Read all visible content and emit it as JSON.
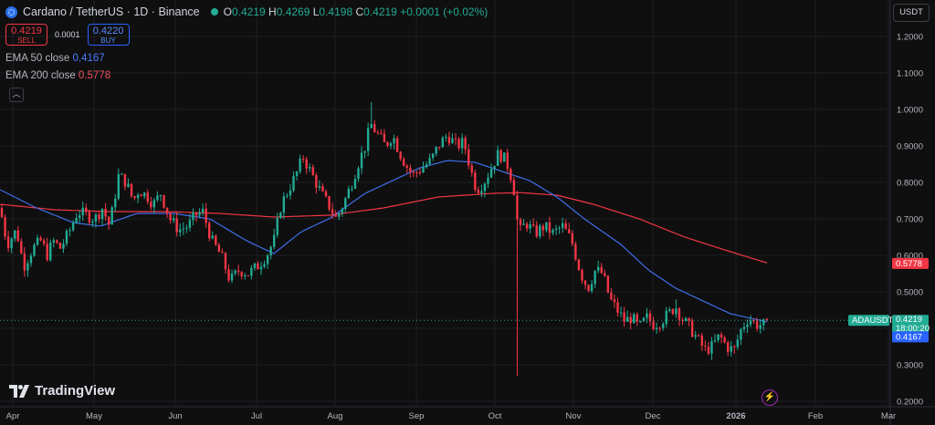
{
  "header": {
    "symbol": "Cardano / TetherUS · 1D · Binance",
    "o_label": "O",
    "o": "0.4219",
    "h_label": "H",
    "h": "0.4269",
    "l_label": "L",
    "l": "0.4198",
    "c_label": "C",
    "c": "0.4219",
    "change": "+0.0001 (+0.02%)",
    "symbol_icon": "cardano-icon",
    "market_status_color": "#22ab94"
  },
  "trade": {
    "sell_price": "0.4219",
    "sell_label": "SELL",
    "spread": "0.0001",
    "buy_price": "0.4220",
    "buy_label": "BUY"
  },
  "indicators": {
    "ema50_label": "EMA 50 close",
    "ema50_value": "0.4167",
    "ema50_color": "#4c7bff",
    "ema200_label": "EMA 200 close",
    "ema200_value": "0.5778",
    "ema200_color": "#f0525c",
    "collapse_icon": "chevron-up-icon"
  },
  "toolbar": {
    "currency": "USDT"
  },
  "branding": {
    "logo_text": "TradingView",
    "logo_icon": "tradingview-logo-icon",
    "bolt_icon": "lightning-icon"
  },
  "chart_data": {
    "type": "candlestick",
    "y_ticks": [
      "1.2000",
      "1.1000",
      "1.0000",
      "0.9000",
      "0.8000",
      "0.7000",
      "0.6000",
      "0.5000",
      "0.4000",
      "0.3000",
      "0.2000"
    ],
    "ylim": [
      0.2,
      1.25
    ],
    "x_ticks": [
      "Apr",
      "May",
      "Jun",
      "Jul",
      "Aug",
      "Sep",
      "Oct",
      "Nov",
      "Dec",
      "2026",
      "Feb",
      "Mar"
    ],
    "price_tags": [
      {
        "label": "0.5778",
        "value": 0.5778,
        "color": "#f23645"
      },
      {
        "label": "ADAUSDT",
        "value": 0.4219,
        "color": "#22ab94"
      },
      {
        "label": "0.4219",
        "value": 0.4219,
        "color": "#22ab94"
      },
      {
        "label": "18:00:20",
        "value": 0.4219,
        "color": "#22ab94"
      },
      {
        "label": "0.4167",
        "value": 0.4167,
        "color": "#2962ff"
      }
    ],
    "up_color": "#22ab94",
    "down_color": "#f23645",
    "close_path": [
      [
        0,
        0.73
      ],
      [
        8,
        0.63
      ],
      [
        18,
        0.67
      ],
      [
        26,
        0.57
      ],
      [
        36,
        0.62
      ],
      [
        45,
        0.64
      ],
      [
        52,
        0.6
      ],
      [
        58,
        0.64
      ],
      [
        66,
        0.62
      ],
      [
        75,
        0.66
      ],
      [
        85,
        0.72
      ],
      [
        95,
        0.71
      ],
      [
        104,
        0.7
      ],
      [
        112,
        0.73
      ],
      [
        120,
        0.68
      ],
      [
        130,
        0.82
      ],
      [
        138,
        0.8
      ],
      [
        146,
        0.75
      ],
      [
        152,
        0.78
      ],
      [
        162,
        0.76
      ],
      [
        168,
        0.74
      ],
      [
        176,
        0.77
      ],
      [
        186,
        0.7
      ],
      [
        196,
        0.67
      ],
      [
        206,
        0.68
      ],
      [
        214,
        0.71
      ],
      [
        222,
        0.72
      ],
      [
        232,
        0.64
      ],
      [
        242,
        0.6
      ],
      [
        252,
        0.53
      ],
      [
        262,
        0.56
      ],
      [
        272,
        0.55
      ],
      [
        282,
        0.57
      ],
      [
        292,
        0.6
      ],
      [
        300,
        0.64
      ],
      [
        308,
        0.74
      ],
      [
        316,
        0.78
      ],
      [
        324,
        0.82
      ],
      [
        332,
        0.87
      ],
      [
        340,
        0.83
      ],
      [
        346,
        0.8
      ],
      [
        354,
        0.76
      ],
      [
        362,
        0.73
      ],
      [
        368,
        0.7
      ],
      [
        376,
        0.74
      ],
      [
        384,
        0.79
      ],
      [
        392,
        0.85
      ],
      [
        400,
        0.9
      ],
      [
        406,
        0.96
      ],
      [
        414,
        0.93
      ],
      [
        422,
        0.9
      ],
      [
        430,
        0.93
      ],
      [
        438,
        0.88
      ],
      [
        444,
        0.85
      ],
      [
        452,
        0.82
      ],
      [
        462,
        0.84
      ],
      [
        472,
        0.86
      ],
      [
        480,
        0.9
      ],
      [
        490,
        0.93
      ],
      [
        500,
        0.9
      ],
      [
        508,
        0.91
      ],
      [
        516,
        0.83
      ],
      [
        522,
        0.78
      ],
      [
        530,
        0.8
      ],
      [
        538,
        0.84
      ],
      [
        546,
        0.88
      ],
      [
        554,
        0.86
      ],
      [
        562,
        0.8
      ],
      [
        568,
        0.66
      ],
      [
        576,
        0.69
      ],
      [
        586,
        0.66
      ],
      [
        596,
        0.68
      ],
      [
        606,
        0.66
      ],
      [
        616,
        0.68
      ],
      [
        626,
        0.64
      ],
      [
        636,
        0.55
      ],
      [
        644,
        0.51
      ],
      [
        652,
        0.56
      ],
      [
        660,
        0.55
      ],
      [
        668,
        0.48
      ],
      [
        676,
        0.45
      ],
      [
        684,
        0.42
      ],
      [
        692,
        0.43
      ],
      [
        700,
        0.4
      ],
      [
        708,
        0.43
      ],
      [
        716,
        0.41
      ],
      [
        724,
        0.42
      ],
      [
        732,
        0.44
      ],
      [
        740,
        0.46
      ],
      [
        746,
        0.43
      ],
      [
        756,
        0.4
      ],
      [
        764,
        0.37
      ],
      [
        772,
        0.34
      ],
      [
        780,
        0.35
      ],
      [
        788,
        0.38
      ],
      [
        796,
        0.35
      ],
      [
        804,
        0.34
      ],
      [
        812,
        0.4
      ],
      [
        820,
        0.43
      ],
      [
        828,
        0.41
      ],
      [
        836,
        0.41
      ],
      [
        842,
        0.4219
      ]
    ],
    "ema50_path": [
      [
        0,
        0.78
      ],
      [
        40,
        0.73
      ],
      [
        80,
        0.69
      ],
      [
        110,
        0.68
      ],
      [
        150,
        0.715
      ],
      [
        190,
        0.715
      ],
      [
        230,
        0.7
      ],
      [
        270,
        0.64
      ],
      [
        300,
        0.605
      ],
      [
        330,
        0.665
      ],
      [
        360,
        0.7
      ],
      [
        400,
        0.77
      ],
      [
        430,
        0.805
      ],
      [
        460,
        0.84
      ],
      [
        490,
        0.86
      ],
      [
        520,
        0.855
      ],
      [
        550,
        0.83
      ],
      [
        580,
        0.805
      ],
      [
        610,
        0.76
      ],
      [
        640,
        0.7
      ],
      [
        680,
        0.63
      ],
      [
        710,
        0.56
      ],
      [
        740,
        0.51
      ],
      [
        770,
        0.475
      ],
      [
        800,
        0.44
      ],
      [
        842,
        0.4167
      ]
    ],
    "ema200_path": [
      [
        0,
        0.74
      ],
      [
        60,
        0.725
      ],
      [
        120,
        0.72
      ],
      [
        180,
        0.72
      ],
      [
        240,
        0.715
      ],
      [
        300,
        0.705
      ],
      [
        360,
        0.71
      ],
      [
        420,
        0.73
      ],
      [
        480,
        0.76
      ],
      [
        540,
        0.77
      ],
      [
        570,
        0.772
      ],
      [
        610,
        0.765
      ],
      [
        650,
        0.74
      ],
      [
        700,
        0.7
      ],
      [
        750,
        0.65
      ],
      [
        800,
        0.61
      ],
      [
        842,
        0.5778
      ]
    ],
    "wick_spikes": [
      {
        "x": 406,
        "high": 1.02
      },
      {
        "x": 568,
        "low": 0.27
      },
      {
        "x": 740,
        "high": 0.48
      },
      {
        "x": 804,
        "low": 0.33
      }
    ]
  }
}
